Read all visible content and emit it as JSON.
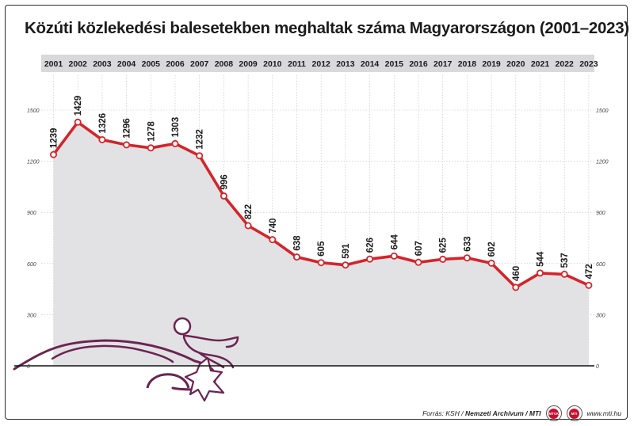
{
  "title": "Közúti közlekedési balesetekben meghaltak száma Magyarországon (2001–2023)",
  "footer": {
    "source_prefix": "Forrás: KSH / ",
    "source_archive": "Nemzeti Archívum / MTI",
    "logo1": "MTVA",
    "logo2": "MTI",
    "url": "www.mti.hu"
  },
  "colors": {
    "line": "#d3252b",
    "area": "#e2e2e4",
    "year_band": "#d9d9dc",
    "axis_text": "#444444",
    "illustration": "#6b2452"
  },
  "illustration": "car-pedestrian-accident-icon",
  "chart_data": {
    "type": "line",
    "title": "Közúti közlekedési balesetekben meghaltak száma Magyarországon (2001–2023)",
    "categories": [
      "2001",
      "2002",
      "2003",
      "2004",
      "2005",
      "2006",
      "2007",
      "2008",
      "2009",
      "2010",
      "2011",
      "2012",
      "2013",
      "2014",
      "2015",
      "2016",
      "2017",
      "2018",
      "2019",
      "2020",
      "2021",
      "2022",
      "2023"
    ],
    "values": [
      1239,
      1429,
      1326,
      1296,
      1278,
      1303,
      1232,
      996,
      822,
      740,
      638,
      605,
      591,
      626,
      644,
      607,
      625,
      633,
      602,
      460,
      544,
      537,
      472
    ],
    "yticks": [
      0,
      300,
      600,
      900,
      1200,
      1500
    ],
    "ylim": [
      0,
      1500
    ],
    "xlabel": "",
    "ylabel": "",
    "grid": true,
    "area_fill": true,
    "data_labels": true,
    "x_axis_position": "top",
    "y_axis_both_sides": true
  }
}
